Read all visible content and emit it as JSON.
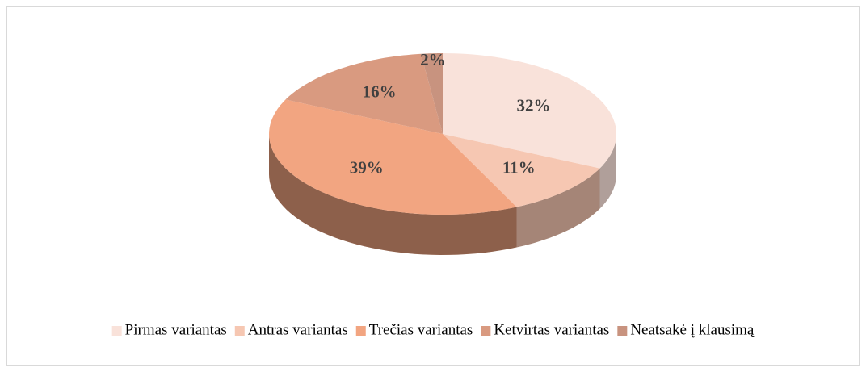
{
  "chart_data": {
    "type": "pie3d",
    "categories": [
      "Pirmas variantas",
      "Antras variantas",
      "Trečias variantas",
      "Ketvirtas variantas",
      "Neatsakė į klausimą"
    ],
    "values": [
      32,
      11,
      39,
      16,
      2
    ],
    "value_labels": [
      "32%",
      "11%",
      "39%",
      "16%",
      "2%"
    ],
    "colors": [
      "#f9e2da",
      "#f6c7b2",
      "#f2a581",
      "#d99a80",
      "#c8937f"
    ],
    "legend": "bottom"
  }
}
